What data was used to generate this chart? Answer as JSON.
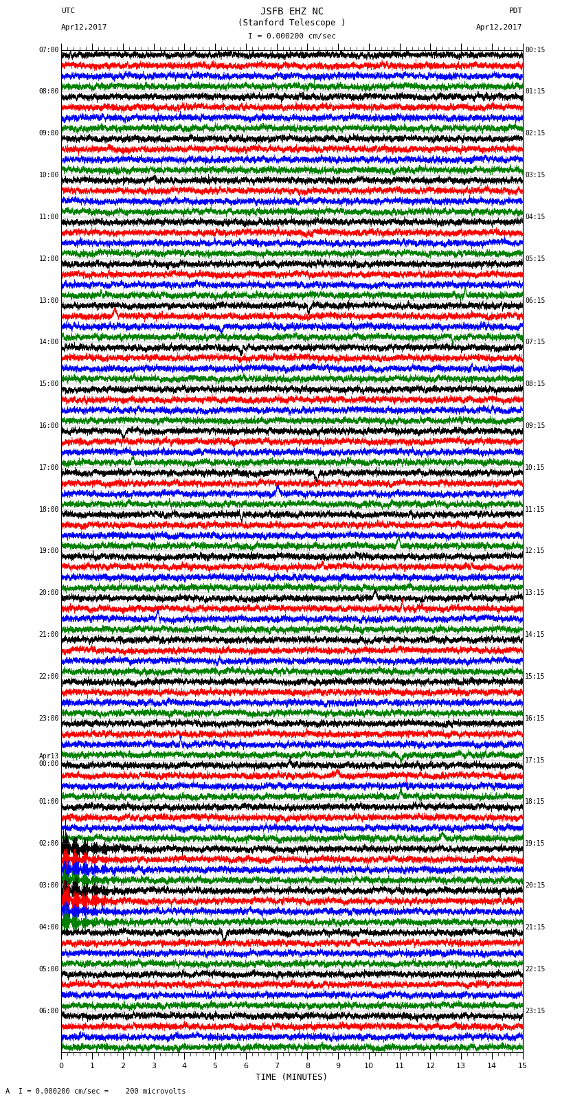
{
  "title_line1": "JSFB EHZ NC",
  "title_line2": "(Stanford Telescope )",
  "scale_text": "I = 0.000200 cm/sec",
  "utc_label": "UTC",
  "utc_date": "Apr12,2017",
  "pdt_label": "PDT",
  "pdt_date": "Apr12,2017",
  "bottom_label": "A  I = 0.000200 cm/sec =    200 microvolts",
  "xlabel": "TIME (MINUTES)",
  "left_times": [
    "07:00",
    "08:00",
    "09:00",
    "10:00",
    "11:00",
    "12:00",
    "13:00",
    "14:00",
    "15:00",
    "16:00",
    "17:00",
    "18:00",
    "19:00",
    "20:00",
    "21:00",
    "22:00",
    "23:00",
    "Apr13\n00:00",
    "01:00",
    "02:00",
    "03:00",
    "04:00",
    "05:00",
    "06:00"
  ],
  "right_times": [
    "00:15",
    "01:15",
    "02:15",
    "03:15",
    "04:15",
    "05:15",
    "06:15",
    "07:15",
    "08:15",
    "09:15",
    "10:15",
    "11:15",
    "12:15",
    "13:15",
    "14:15",
    "15:15",
    "16:15",
    "17:15",
    "18:15",
    "19:15",
    "20:15",
    "21:15",
    "22:15",
    "23:15"
  ],
  "trace_colors": [
    "#000000",
    "#ff0000",
    "#0000ff",
    "#008000"
  ],
  "n_rows": 24,
  "traces_per_row": 4,
  "xmin": 0,
  "xmax": 15,
  "bg_color": "#ffffff",
  "fig_width": 8.5,
  "fig_height": 16.13,
  "dpi": 100
}
